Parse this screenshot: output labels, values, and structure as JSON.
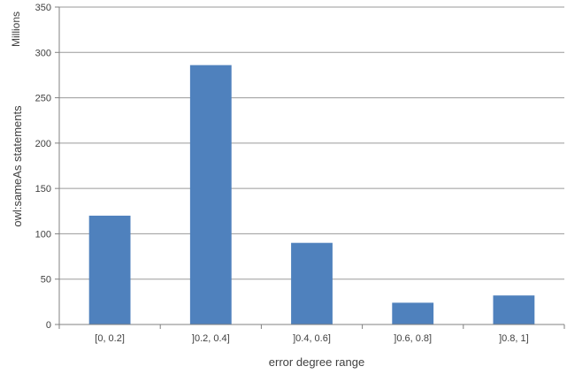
{
  "chart_data": {
    "type": "bar",
    "categories": [
      "[0, 0.2]",
      "]0.2, 0.4]",
      "]0.4, 0.6]",
      "]0.6, 0.8]",
      "]0.8, 1]"
    ],
    "values": [
      120,
      286,
      90,
      24,
      32
    ],
    "title": "",
    "xlabel": "error degree range",
    "ylabel": "owl:sameAs statements",
    "y_unit_label": "Millions",
    "ylim": [
      0,
      350
    ],
    "yticks": [
      0,
      50,
      100,
      150,
      200,
      250,
      300,
      350
    ],
    "grid": "horizontal",
    "legend": "none",
    "bar_color": "#4f81bd",
    "grid_color": "#9a9a9a",
    "axis_color": "#808080"
  }
}
